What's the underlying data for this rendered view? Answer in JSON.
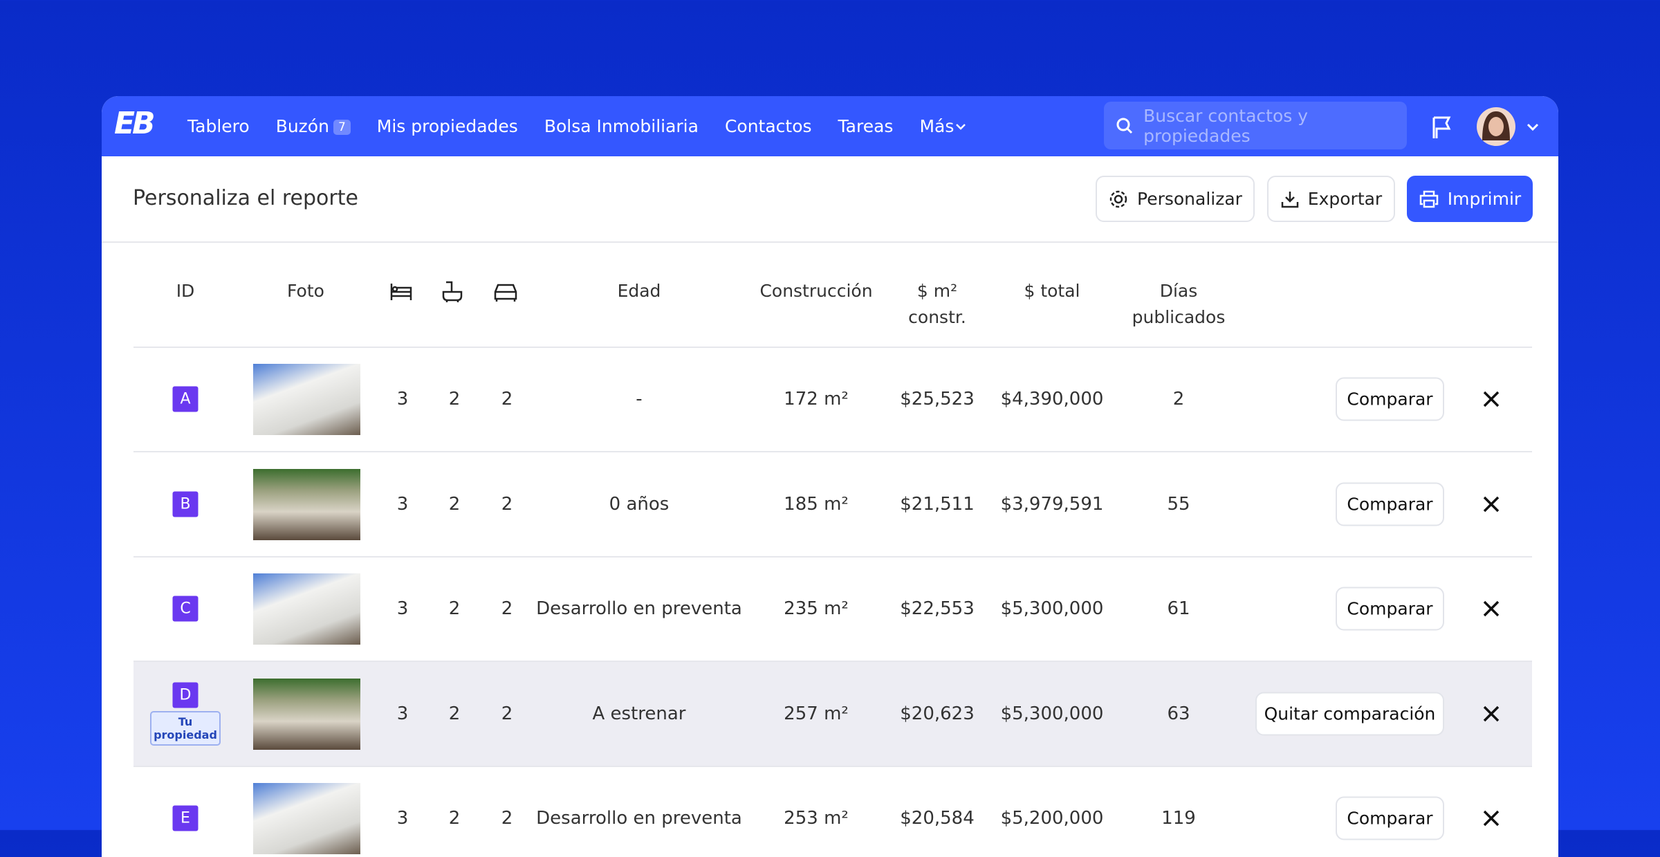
{
  "nav": {
    "logo": "EB",
    "items": [
      "Tablero",
      "Buzón",
      "Mis propiedades",
      "Bolsa Inmobiliaria",
      "Contactos",
      "Tareas",
      "Más"
    ],
    "inbox_count": "7",
    "search_placeholder": "Buscar contactos y propiedades"
  },
  "header": {
    "title": "Personaliza el reporte",
    "buttons": [
      "Personalizar",
      "Exportar",
      "Imprimir"
    ]
  },
  "table": {
    "columns": [
      "ID",
      "Foto",
      "Edad",
      "Construcción",
      "$ m² constr.",
      "$ total",
      "Días publicados"
    ],
    "rows": [
      [
        "A",
        "3",
        "2",
        "2",
        "-",
        "172 m²",
        "$25,523",
        "$4,390,000",
        "2",
        "Comparar"
      ],
      [
        "B",
        "3",
        "2",
        "2",
        "0 años",
        "185 m²",
        "$21,511",
        "$3,979,591",
        "55",
        "Comparar"
      ],
      [
        "C",
        "3",
        "2",
        "2",
        "Desarrollo en preventa",
        "235 m²",
        "$22,553",
        "$5,300,000",
        "61",
        "Comparar"
      ],
      [
        "D",
        "3",
        "2",
        "2",
        "A estrenar",
        "257 m²",
        "$20,623",
        "$5,300,000",
        "63",
        "Quitar comparación"
      ],
      [
        "E",
        "3",
        "2",
        "2",
        "Desarrollo en preventa",
        "253 m²",
        "$20,584",
        "$5,200,000",
        "119",
        "Comparar"
      ]
    ],
    "own_badge": "Tu propiedad"
  }
}
